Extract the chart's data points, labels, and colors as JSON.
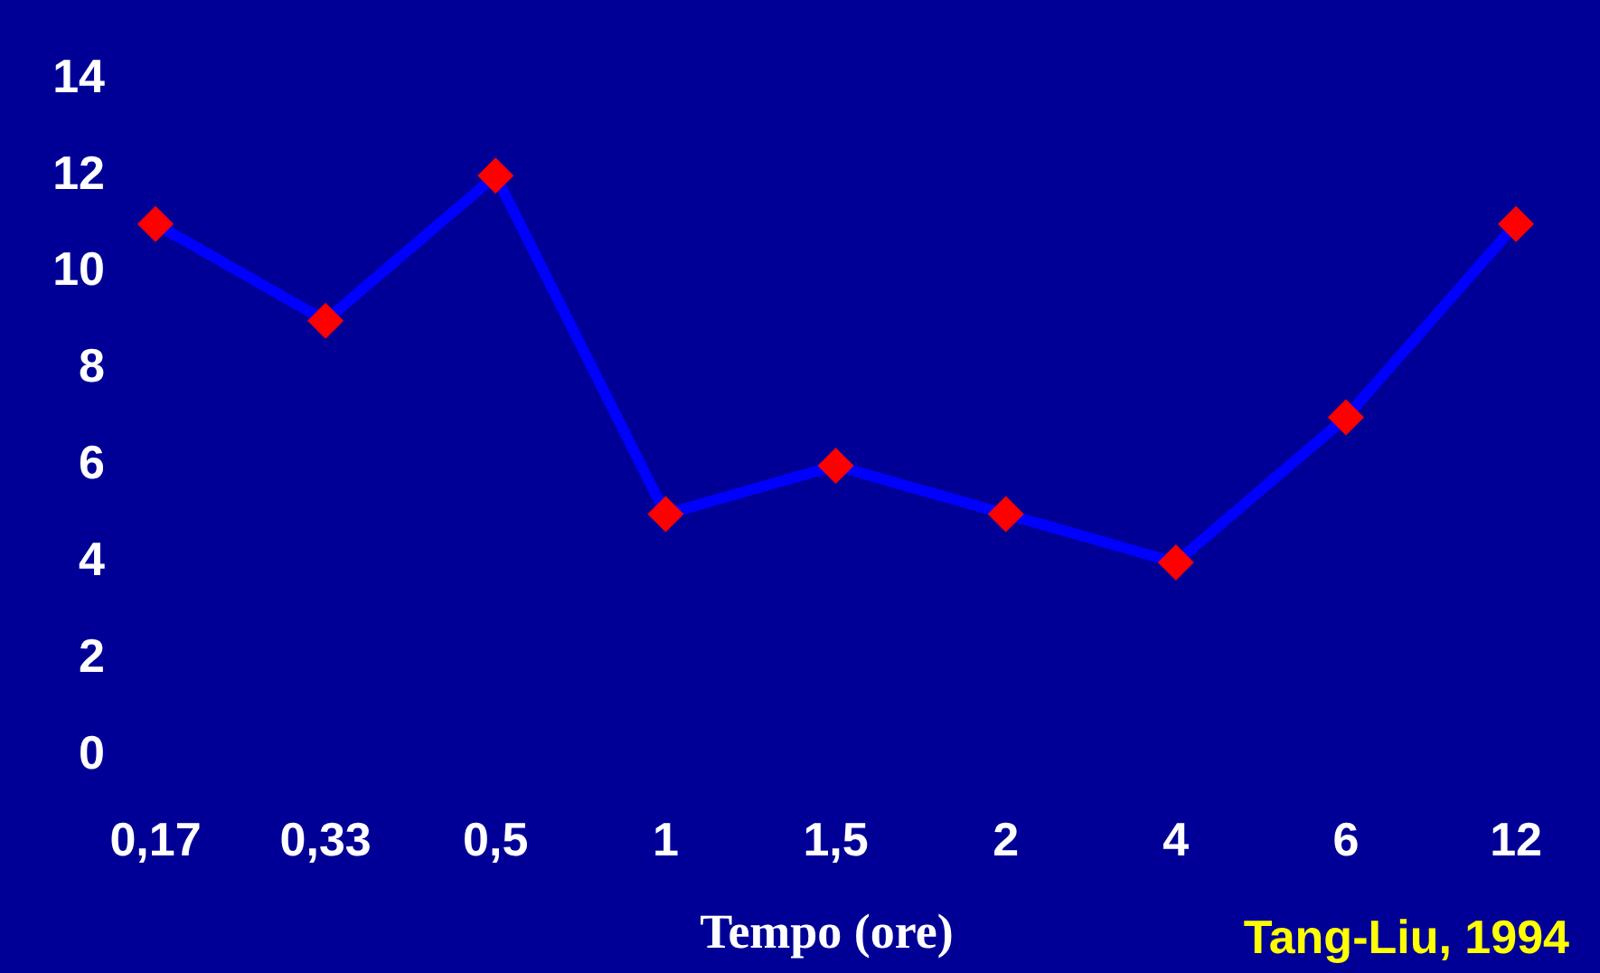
{
  "chart_data": {
    "type": "line",
    "xlabel": "Tempo (ore)",
    "annotations": [
      "Tang-Liu, 1994"
    ],
    "categories": [
      "0,17",
      "0,33",
      "0,5",
      "1",
      "1,5",
      "2",
      "4",
      "6",
      "12"
    ],
    "values": [
      11,
      9,
      12,
      5,
      6,
      5,
      4,
      7,
      11
    ],
    "color": "#0000ff",
    "ylim": [
      0,
      14
    ],
    "yticks": [
      0,
      2,
      4,
      6,
      8,
      10,
      12,
      14
    ],
    "grid": false,
    "legend": false,
    "marker": "diamond",
    "line_style": "solid"
  }
}
